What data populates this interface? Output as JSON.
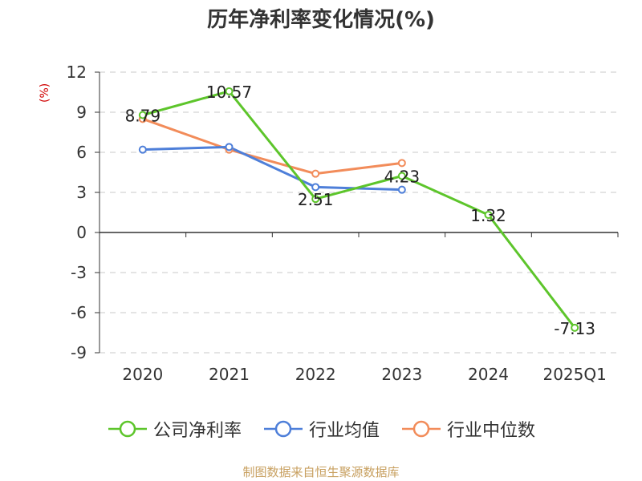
{
  "chart_data": {
    "type": "line",
    "title": "历年净利率变化情况(%)",
    "ylabel": "(%)",
    "categories": [
      "2020",
      "2021",
      "2022",
      "2023",
      "2024",
      "2025Q1"
    ],
    "ylim": [
      -9,
      12
    ],
    "yticks": [
      12,
      9,
      6,
      3,
      0,
      -3,
      -6,
      -9
    ],
    "grid": true,
    "legend_position": "bottom",
    "series": [
      {
        "name": "公司净利率",
        "color": "#5dc52b",
        "values": [
          8.79,
          10.57,
          2.51,
          4.23,
          1.32,
          -7.13
        ],
        "labels": [
          "8.79",
          "10.57",
          "2.51",
          "4.23",
          "1.32",
          "-7.13"
        ]
      },
      {
        "name": "行业均值",
        "color": "#4e7fd9",
        "values": [
          6.2,
          6.4,
          3.4,
          3.2,
          null,
          null
        ]
      },
      {
        "name": "行业中位数",
        "color": "#f28c5a",
        "values": [
          8.5,
          6.2,
          4.4,
          5.2,
          null,
          null
        ]
      }
    ]
  },
  "source_text": "制图数据来自恒生聚源数据库"
}
